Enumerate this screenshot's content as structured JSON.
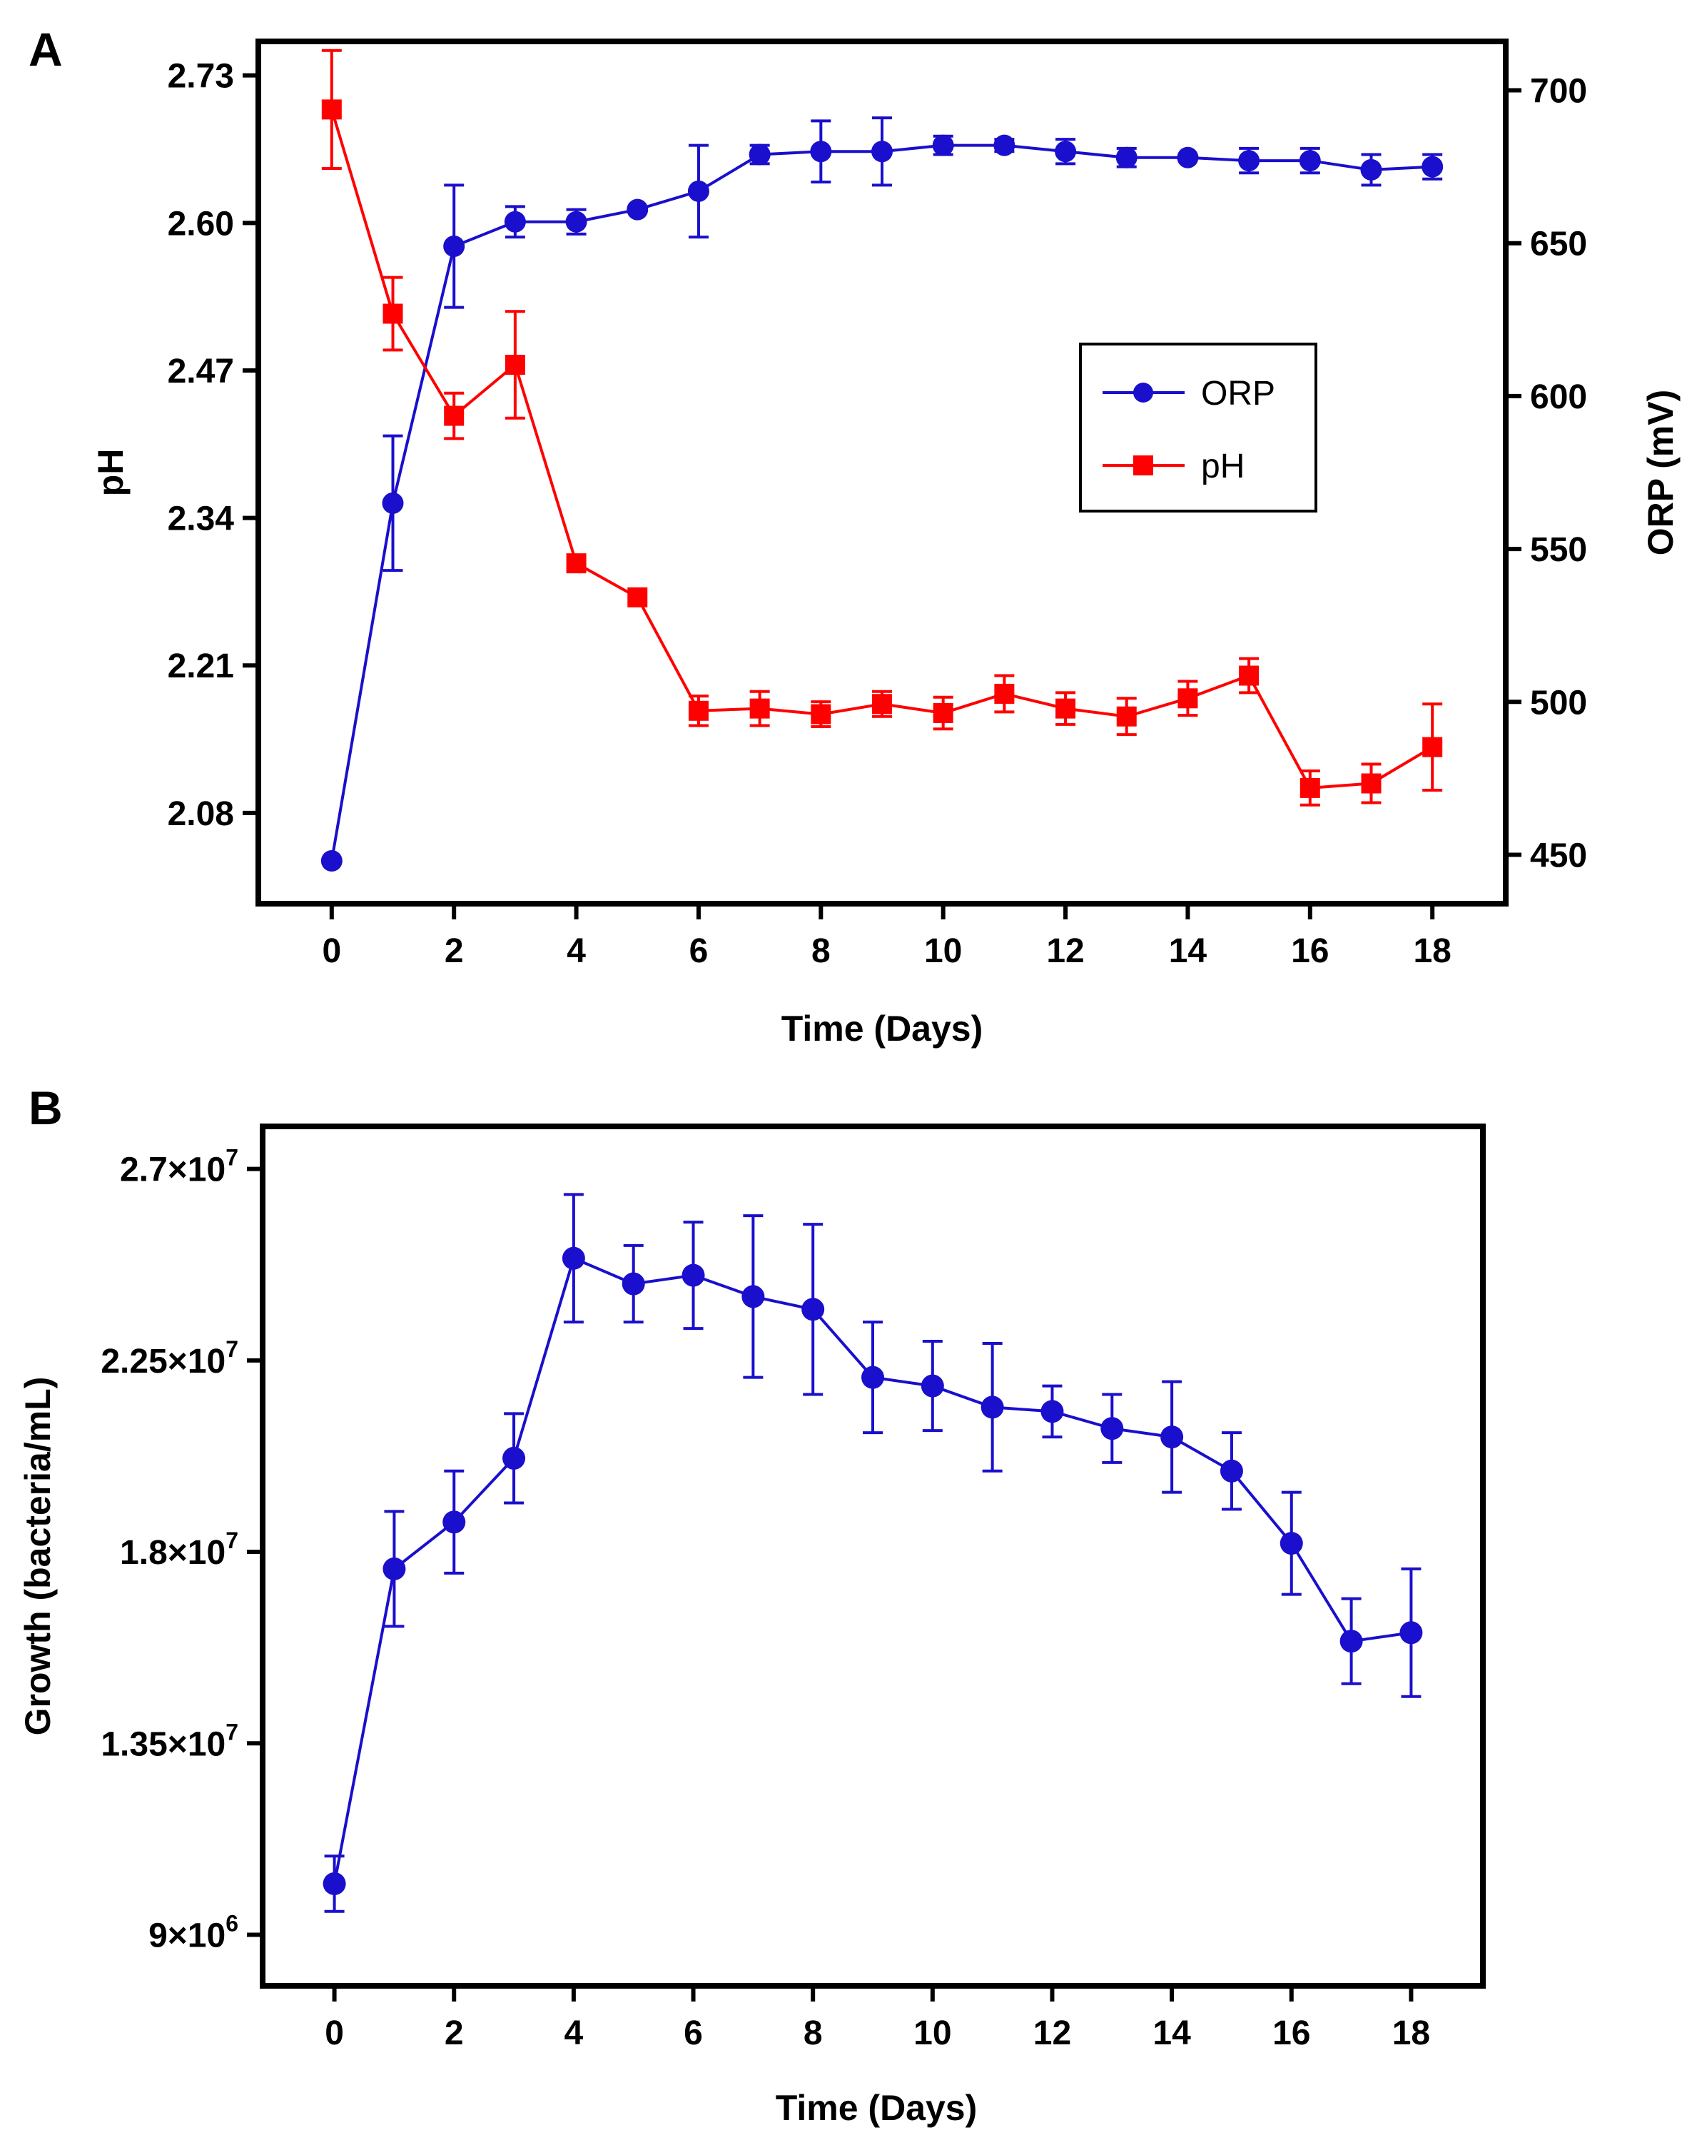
{
  "figure": {
    "panel_a_letter": "A",
    "panel_b_letter": "B"
  },
  "colors": {
    "orp": "#1a0fcc",
    "ph": "#ff0000",
    "axis": "#000000"
  },
  "chart_data": [
    {
      "panel": "A",
      "type": "line",
      "xlabel": "Time (Days)",
      "ylabel_left": "pH",
      "ylabel_right": "ORP (mV)",
      "xlim": [
        -1.2,
        19.2
      ],
      "xticks": [
        0,
        2,
        4,
        6,
        8,
        10,
        12,
        14,
        16,
        18
      ],
      "ylim_left": [
        2.0,
        2.76
      ],
      "yticks_left": [
        "2.08",
        "2.21",
        "2.34",
        "2.47",
        "2.60",
        "2.73"
      ],
      "ylim_right": [
        434,
        716
      ],
      "yticks_right": [
        "450",
        "500",
        "550",
        "600",
        "650",
        "700"
      ],
      "legend": {
        "position": "center-right",
        "entries": [
          "ORP",
          "pH"
        ]
      },
      "series": [
        {
          "name": "ORP",
          "axis": "right",
          "marker": "circle",
          "x": [
            0,
            1,
            2,
            3,
            4,
            5,
            6,
            7,
            8,
            9,
            10,
            11,
            12,
            13,
            14,
            15,
            16,
            17,
            18
          ],
          "values": [
            448,
            565,
            649,
            657,
            657,
            661,
            667,
            679,
            680,
            680,
            682,
            682,
            680,
            678,
            678,
            677,
            677,
            674,
            675
          ],
          "errors": [
            0,
            22,
            20,
            5,
            4,
            0,
            15,
            3,
            10,
            11,
            3,
            2,
            4,
            3,
            0,
            4,
            4,
            5,
            4
          ]
        },
        {
          "name": "pH",
          "axis": "left",
          "marker": "square",
          "x": [
            0,
            1,
            2,
            3,
            4,
            5,
            6,
            7,
            8,
            9,
            10,
            11,
            12,
            13,
            14,
            15,
            16,
            17,
            18
          ],
          "values": [
            2.7,
            2.52,
            2.43,
            2.475,
            2.3,
            2.27,
            2.17,
            2.172,
            2.167,
            2.176,
            2.168,
            2.185,
            2.172,
            2.165,
            2.181,
            2.201,
            2.102,
            2.106,
            2.138
          ],
          "errors": [
            0.052,
            0.032,
            0.02,
            0.047,
            0,
            0,
            0.013,
            0.015,
            0.011,
            0.011,
            0.014,
            0.016,
            0.014,
            0.016,
            0.015,
            0.015,
            0.015,
            0.017,
            0.038
          ]
        }
      ]
    },
    {
      "panel": "B",
      "type": "line",
      "xlabel": "Time (Days)",
      "ylabel": "Growth (bacteria/mL)",
      "xlim": [
        -1.2,
        19.2
      ],
      "xticks": [
        0,
        2,
        4,
        6,
        8,
        10,
        12,
        14,
        16,
        18
      ],
      "ylim": [
        7800000,
        28000000
      ],
      "yticks": [
        {
          "value": 9000000,
          "mantissa": "9",
          "exp": "6"
        },
        {
          "value": 13500000,
          "mantissa": "1.35",
          "exp": "7"
        },
        {
          "value": 18000000,
          "mantissa": "1.8",
          "exp": "7"
        },
        {
          "value": 22500000,
          "mantissa": "2.25",
          "exp": "7"
        },
        {
          "value": 27000000,
          "mantissa": "2.7",
          "exp": "7"
        }
      ],
      "series": [
        {
          "name": "Growth",
          "marker": "circle",
          "x": [
            0,
            1,
            2,
            3,
            4,
            5,
            6,
            7,
            8,
            9,
            10,
            11,
            12,
            13,
            14,
            15,
            16,
            17,
            18
          ],
          "values": [
            10200000,
            17600000,
            18700000,
            20200000,
            24900000,
            24300000,
            24500000,
            24000000,
            23700000,
            22100000,
            21900000,
            21400000,
            21300000,
            20900000,
            20700000,
            19900000,
            18200000,
            15900000,
            16100000
          ],
          "errors": [
            650000,
            1350000,
            1200000,
            1050000,
            1500000,
            900000,
            1250000,
            1900000,
            2000000,
            1300000,
            1050000,
            1500000,
            600000,
            800000,
            1300000,
            900000,
            1200000,
            1000000,
            1500000
          ]
        }
      ]
    }
  ]
}
